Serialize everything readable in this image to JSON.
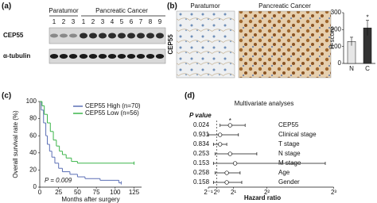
{
  "panel_labels": [
    "(a)",
    "(b)",
    "(c)",
    "(d)"
  ],
  "blot": {
    "groups": [
      {
        "name": "Paratumor",
        "lanes": [
          1,
          2,
          3
        ]
      },
      {
        "name": "Pancreatic Cancer",
        "lanes": [
          1,
          2,
          3,
          4,
          5,
          6,
          7,
          8,
          9
        ]
      }
    ],
    "rows": [
      "CEP55",
      "α-tubulin"
    ]
  },
  "ihc": {
    "images": [
      "Paratumor",
      "Pancreatic Cancer"
    ],
    "stain": "CEP55"
  },
  "chart_data": [
    {
      "type": "bar",
      "ylabel": "H-score",
      "categories": [
        "N",
        "C"
      ],
      "values": [
        130,
        210
      ],
      "errors": [
        25,
        45
      ],
      "colors": [
        "#e6e6e6",
        "#333333"
      ],
      "ylim": [
        0,
        300
      ],
      "yticks": [
        0,
        100,
        200,
        300
      ],
      "annotation": "*"
    },
    {
      "type": "line",
      "xlabel": "Months after surgery",
      "ylabel": "Overall survival rate (%)",
      "xlim": [
        0,
        135
      ],
      "ylim": [
        0,
        100
      ],
      "xticks": [
        0,
        25,
        50,
        75,
        100,
        125
      ],
      "yticks": [
        0,
        20,
        40,
        60,
        80,
        100
      ],
      "series": [
        {
          "name": "CEP55 High (n=70)",
          "color": "#5b6fb5",
          "x": [
            0,
            2,
            5,
            8,
            10,
            13,
            16,
            20,
            25,
            30,
            40,
            50,
            60,
            80,
            105,
            108
          ],
          "values": [
            100,
            90,
            75,
            60,
            50,
            42,
            35,
            28,
            22,
            18,
            15,
            12,
            10,
            8,
            5,
            5
          ]
        },
        {
          "name": "CEP55 Low (n=56)",
          "color": "#3cb54a",
          "x": [
            0,
            3,
            6,
            10,
            14,
            18,
            22,
            26,
            30,
            35,
            42,
            50,
            125
          ],
          "values": [
            100,
            95,
            85,
            75,
            65,
            55,
            48,
            42,
            38,
            34,
            30,
            28,
            28
          ]
        }
      ],
      "annotation": "P = 0.009"
    },
    {
      "type": "forest",
      "title": "Multivariate analyses",
      "p_header": "P value",
      "categories": [
        "CEP55",
        "Clinical stage",
        "T stage",
        "N stage",
        "M stage",
        "Age",
        "Gender"
      ],
      "p_values": [
        0.024,
        0.931,
        0.834,
        0.253,
        0.153,
        0.258,
        0.158
      ],
      "values": [
        1.8,
        1.2,
        1.2,
        1.8,
        2.1,
        1.6,
        1.6
      ],
      "lower": [
        1.2,
        0.5,
        0.8,
        0.9,
        0.8,
        0.9,
        0.8
      ],
      "upper": [
        2.7,
        2.3,
        1.6,
        3.4,
        7.5,
        2.4,
        2.5
      ],
      "reference": 1,
      "xlim": [
        0,
        8.3
      ],
      "xticks": [
        {
          "value": 0.5,
          "label": "2⁻¹"
        },
        {
          "value": 1,
          "label": "2⁰"
        },
        {
          "value": 2,
          "label": "2¹"
        },
        {
          "value": 4,
          "label": "2²"
        },
        {
          "value": 8,
          "label": "2³"
        }
      ],
      "xlabel": "Hazard ratio",
      "annotation": "*"
    }
  ]
}
